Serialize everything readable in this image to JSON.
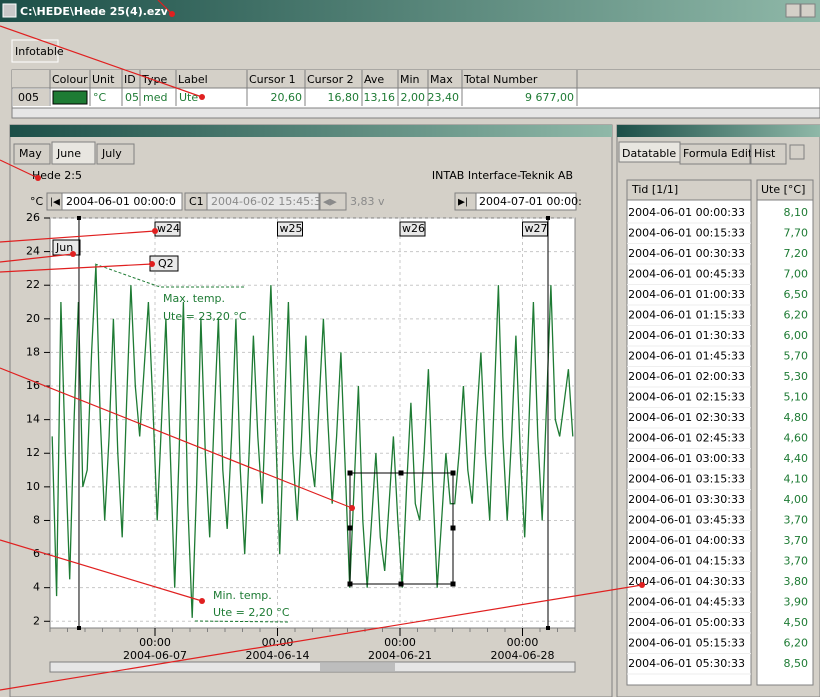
{
  "window": {
    "title": "C:\\HEDE\\Hede 25(4).ezv"
  },
  "infotable": {
    "tab": "Infotable",
    "headers": [
      "Colour",
      "Unit",
      "ID",
      "Type",
      "Label",
      "Cursor 1",
      "Cursor 2",
      "Ave",
      "Min",
      "Max",
      "Total Number"
    ],
    "row": {
      "index": "005",
      "colour": "#1e7b34",
      "cells": [
        "°C",
        "05",
        "med",
        "Ute",
        "20,60",
        "16,80",
        "13,16",
        "2,00",
        "23,40",
        "9 677,00"
      ]
    }
  },
  "graph": {
    "tabs": [
      "May",
      "June",
      "July"
    ],
    "active_tab": 1,
    "name": "Hede 2:5",
    "company": "INTAB Interface-Teknik AB",
    "toolbar": {
      "unit": "°C",
      "start": "2004-06-01 00:00:0",
      "cursor": "C1",
      "cursor_time": "2004-06-02 15:45:3",
      "delta": "3,83 v",
      "end": "2004-07-01 00:00:"
    },
    "chart": {
      "type": "line",
      "xlim": [
        "2004-06-01",
        "2004-07-01"
      ],
      "xticks": [
        {
          "time": "00:00",
          "date": "2004-06-07"
        },
        {
          "time": "00:00",
          "date": "2004-06-14"
        },
        {
          "time": "00:00",
          "date": "2004-06-21"
        },
        {
          "time": "00:00",
          "date": "2004-06-28"
        }
      ],
      "ylim": [
        1.6,
        26
      ],
      "yticks": [
        2,
        4,
        6,
        8,
        10,
        12,
        14,
        16,
        18,
        20,
        22,
        24,
        26
      ],
      "grid": true,
      "markers": {
        "month": "Jun",
        "quarter": "Q2",
        "weeks": [
          "w24",
          "w25",
          "w26",
          "w27"
        ]
      },
      "annotations": {
        "max": [
          "Max. temp.",
          "Ute = 23,20 °C"
        ],
        "min": [
          "Min. temp.",
          "Ute = 2,20 °C"
        ]
      },
      "series": [
        {
          "color": "#1e7b34",
          "values": [
            13,
            3.5,
            21,
            12,
            4.5,
            14,
            21,
            10,
            11,
            18,
            23.2,
            14,
            8,
            13,
            20,
            12,
            7,
            15,
            22,
            16,
            13,
            17,
            21,
            15,
            8,
            14,
            20,
            12,
            4,
            12,
            21,
            9,
            2.2,
            10,
            20,
            12,
            7,
            14,
            20,
            11,
            7.5,
            13,
            20,
            11,
            6,
            12,
            19,
            13,
            9,
            16,
            22,
            14,
            6,
            14,
            21,
            12,
            8,
            13,
            19,
            12,
            10,
            15,
            20,
            14,
            9,
            13,
            18,
            11,
            4,
            10,
            16,
            8,
            4,
            8,
            12,
            7,
            5,
            9,
            13,
            8,
            4,
            10,
            15,
            9,
            8,
            12,
            17,
            10,
            4,
            8,
            12,
            9,
            9,
            12,
            16,
            11,
            9,
            14,
            18,
            12,
            8,
            15,
            22,
            13,
            8,
            13,
            19,
            12,
            7,
            14,
            21,
            13,
            8,
            15,
            22,
            14,
            13,
            15,
            17,
            13
          ]
        }
      ]
    }
  },
  "datatable": {
    "tabs": [
      "Datatable",
      "Formula Editor",
      "Hist"
    ],
    "headers": [
      "Tid [1/1]",
      "Ute [°C]"
    ],
    "rows": [
      [
        "2004-06-01 00:00:33",
        "8,10"
      ],
      [
        "2004-06-01 00:15:33",
        "7,70"
      ],
      [
        "2004-06-01 00:30:33",
        "7,20"
      ],
      [
        "2004-06-01 00:45:33",
        "7,00"
      ],
      [
        "2004-06-01 01:00:33",
        "6,50"
      ],
      [
        "2004-06-01 01:15:33",
        "6,20"
      ],
      [
        "2004-06-01 01:30:33",
        "6,00"
      ],
      [
        "2004-06-01 01:45:33",
        "5,70"
      ],
      [
        "2004-06-01 02:00:33",
        "5,30"
      ],
      [
        "2004-06-01 02:15:33",
        "5,10"
      ],
      [
        "2004-06-01 02:30:33",
        "4,80"
      ],
      [
        "2004-06-01 02:45:33",
        "4,60"
      ],
      [
        "2004-06-01 03:00:33",
        "4,40"
      ],
      [
        "2004-06-01 03:15:33",
        "4,10"
      ],
      [
        "2004-06-01 03:30:33",
        "4,00"
      ],
      [
        "2004-06-01 03:45:33",
        "3,70"
      ],
      [
        "2004-06-01 04:00:33",
        "3,70"
      ],
      [
        "2004-06-01 04:15:33",
        "3,70"
      ],
      [
        "2004-06-01 04:30:33",
        "3,80"
      ],
      [
        "2004-06-01 04:45:33",
        "3,90"
      ],
      [
        "2004-06-01 05:00:33",
        "4,50"
      ],
      [
        "2004-06-01 05:15:33",
        "6,20"
      ],
      [
        "2004-06-01 05:30:33",
        "8,50"
      ]
    ]
  }
}
